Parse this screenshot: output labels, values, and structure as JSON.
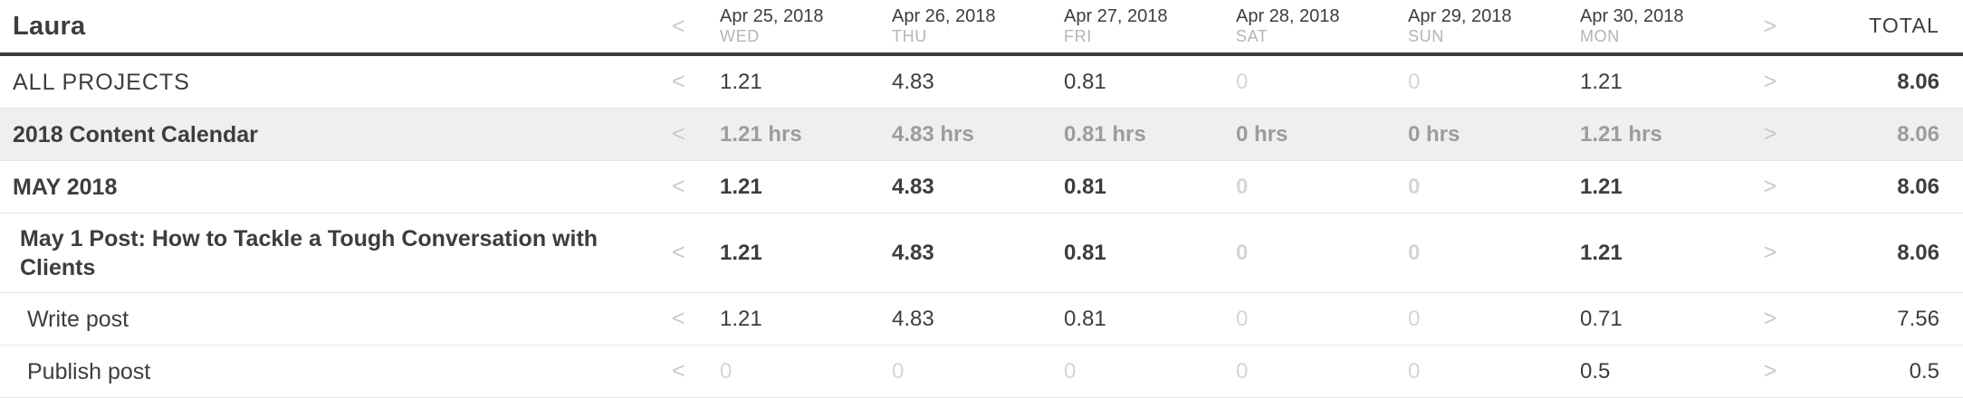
{
  "colors": {
    "text_dark": "#3d3d3d",
    "text_muted": "#9c9c9c",
    "text_faint_zero": "#d6d6d6",
    "weekday_gray": "#b5b5b5",
    "arrow_gray": "#c9c9c9",
    "muted_row_bg": "#efefef",
    "row_divider": "#e6e6e6",
    "header_rule": "#3c3c3c"
  },
  "header": {
    "user_name": "Laura",
    "prev_arrow": "<",
    "next_arrow": ">",
    "total_label": "TOTAL",
    "days": [
      {
        "date": "Apr 25, 2018",
        "weekday": "WED"
      },
      {
        "date": "Apr 26, 2018",
        "weekday": "THU"
      },
      {
        "date": "Apr 27, 2018",
        "weekday": "FRI"
      },
      {
        "date": "Apr 28, 2018",
        "weekday": "SAT"
      },
      {
        "date": "Apr 29, 2018",
        "weekday": "SUN"
      },
      {
        "date": "Apr 30, 2018",
        "weekday": "MON"
      }
    ]
  },
  "rows": [
    {
      "name": "ALL PROJECTS",
      "kind": "summary",
      "values": [
        "1.21",
        "4.83",
        "0.81",
        "0",
        "0",
        "1.21"
      ],
      "total": "8.06"
    },
    {
      "name": "2018 Content Calendar",
      "kind": "project",
      "values": [
        "1.21 hrs",
        "4.83 hrs",
        "0.81 hrs",
        "0 hrs",
        "0 hrs",
        "1.21 hrs"
      ],
      "total": "8.06"
    },
    {
      "name": "MAY 2018",
      "kind": "group",
      "values": [
        "1.21",
        "4.83",
        "0.81",
        "0",
        "0",
        "1.21"
      ],
      "total": "8.06"
    },
    {
      "name": "May 1 Post: How to Tackle a Tough Conversation with Clients",
      "kind": "task",
      "values": [
        "1.21",
        "4.83",
        "0.81",
        "0",
        "0",
        "1.21"
      ],
      "total": "8.06"
    },
    {
      "name": "Write post",
      "kind": "subtask",
      "values": [
        "1.21",
        "4.83",
        "0.81",
        "0",
        "0",
        "0.71"
      ],
      "total": "7.56"
    },
    {
      "name": "Publish post",
      "kind": "subtask",
      "values": [
        "0",
        "0",
        "0",
        "0",
        "0",
        "0.5"
      ],
      "total": "0.5"
    }
  ]
}
